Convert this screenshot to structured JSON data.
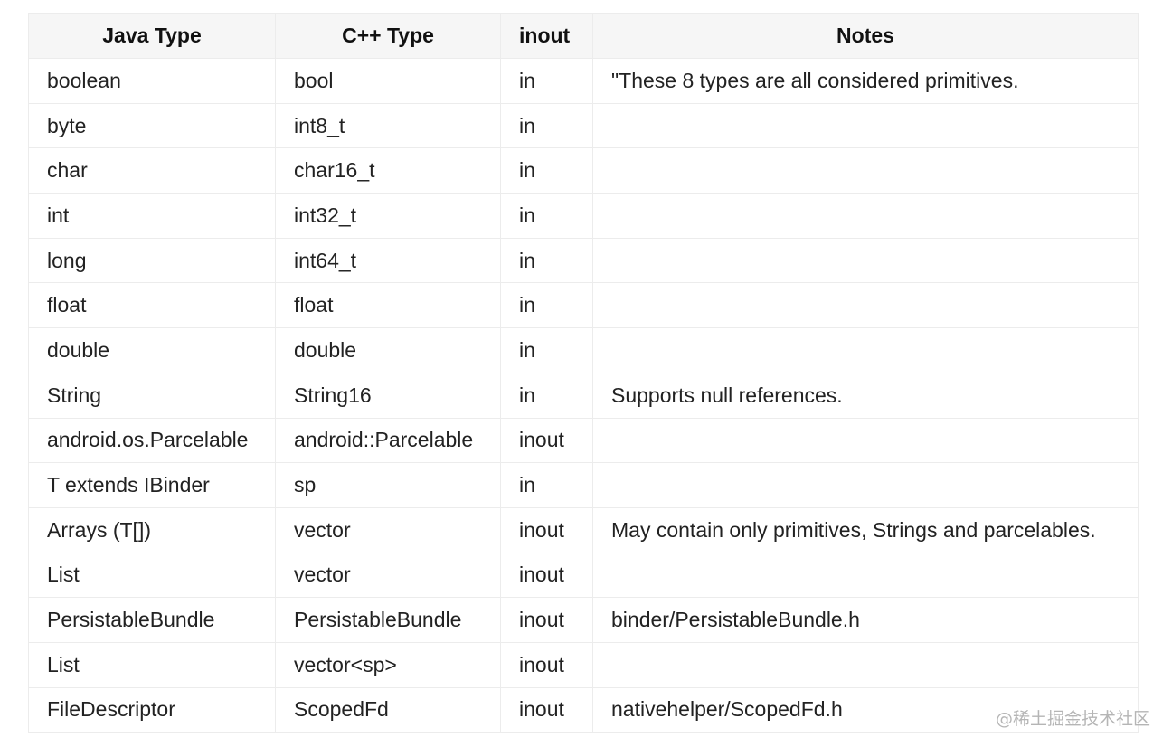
{
  "table": {
    "headers": [
      "Java Type",
      "C++ Type",
      "inout",
      "Notes"
    ],
    "rows": [
      [
        "boolean",
        "bool",
        "in",
        "\"These 8 types are all considered primitives."
      ],
      [
        "byte",
        "int8_t",
        "in",
        ""
      ],
      [
        "char",
        "char16_t",
        "in",
        ""
      ],
      [
        "int",
        "int32_t",
        "in",
        ""
      ],
      [
        "long",
        "int64_t",
        "in",
        ""
      ],
      [
        "float",
        "float",
        "in",
        ""
      ],
      [
        "double",
        "double",
        "in",
        ""
      ],
      [
        "String",
        "String16",
        "in",
        "Supports null references."
      ],
      [
        "android.os.Parcelable",
        "android::Parcelable",
        "inout",
        ""
      ],
      [
        "T extends IBinder",
        "sp",
        "in",
        ""
      ],
      [
        "Arrays (T[])",
        "vector",
        "inout",
        "May contain only primitives, Strings and parcelables."
      ],
      [
        "List",
        "vector",
        "inout",
        ""
      ],
      [
        "PersistableBundle",
        "PersistableBundle",
        "inout",
        "binder/PersistableBundle.h"
      ],
      [
        "List",
        "vector<sp>",
        "inout",
        ""
      ],
      [
        "FileDescriptor",
        "ScopedFd",
        "inout",
        "nativehelper/ScopedFd.h"
      ]
    ]
  },
  "watermark": "@稀土掘金技术社区"
}
